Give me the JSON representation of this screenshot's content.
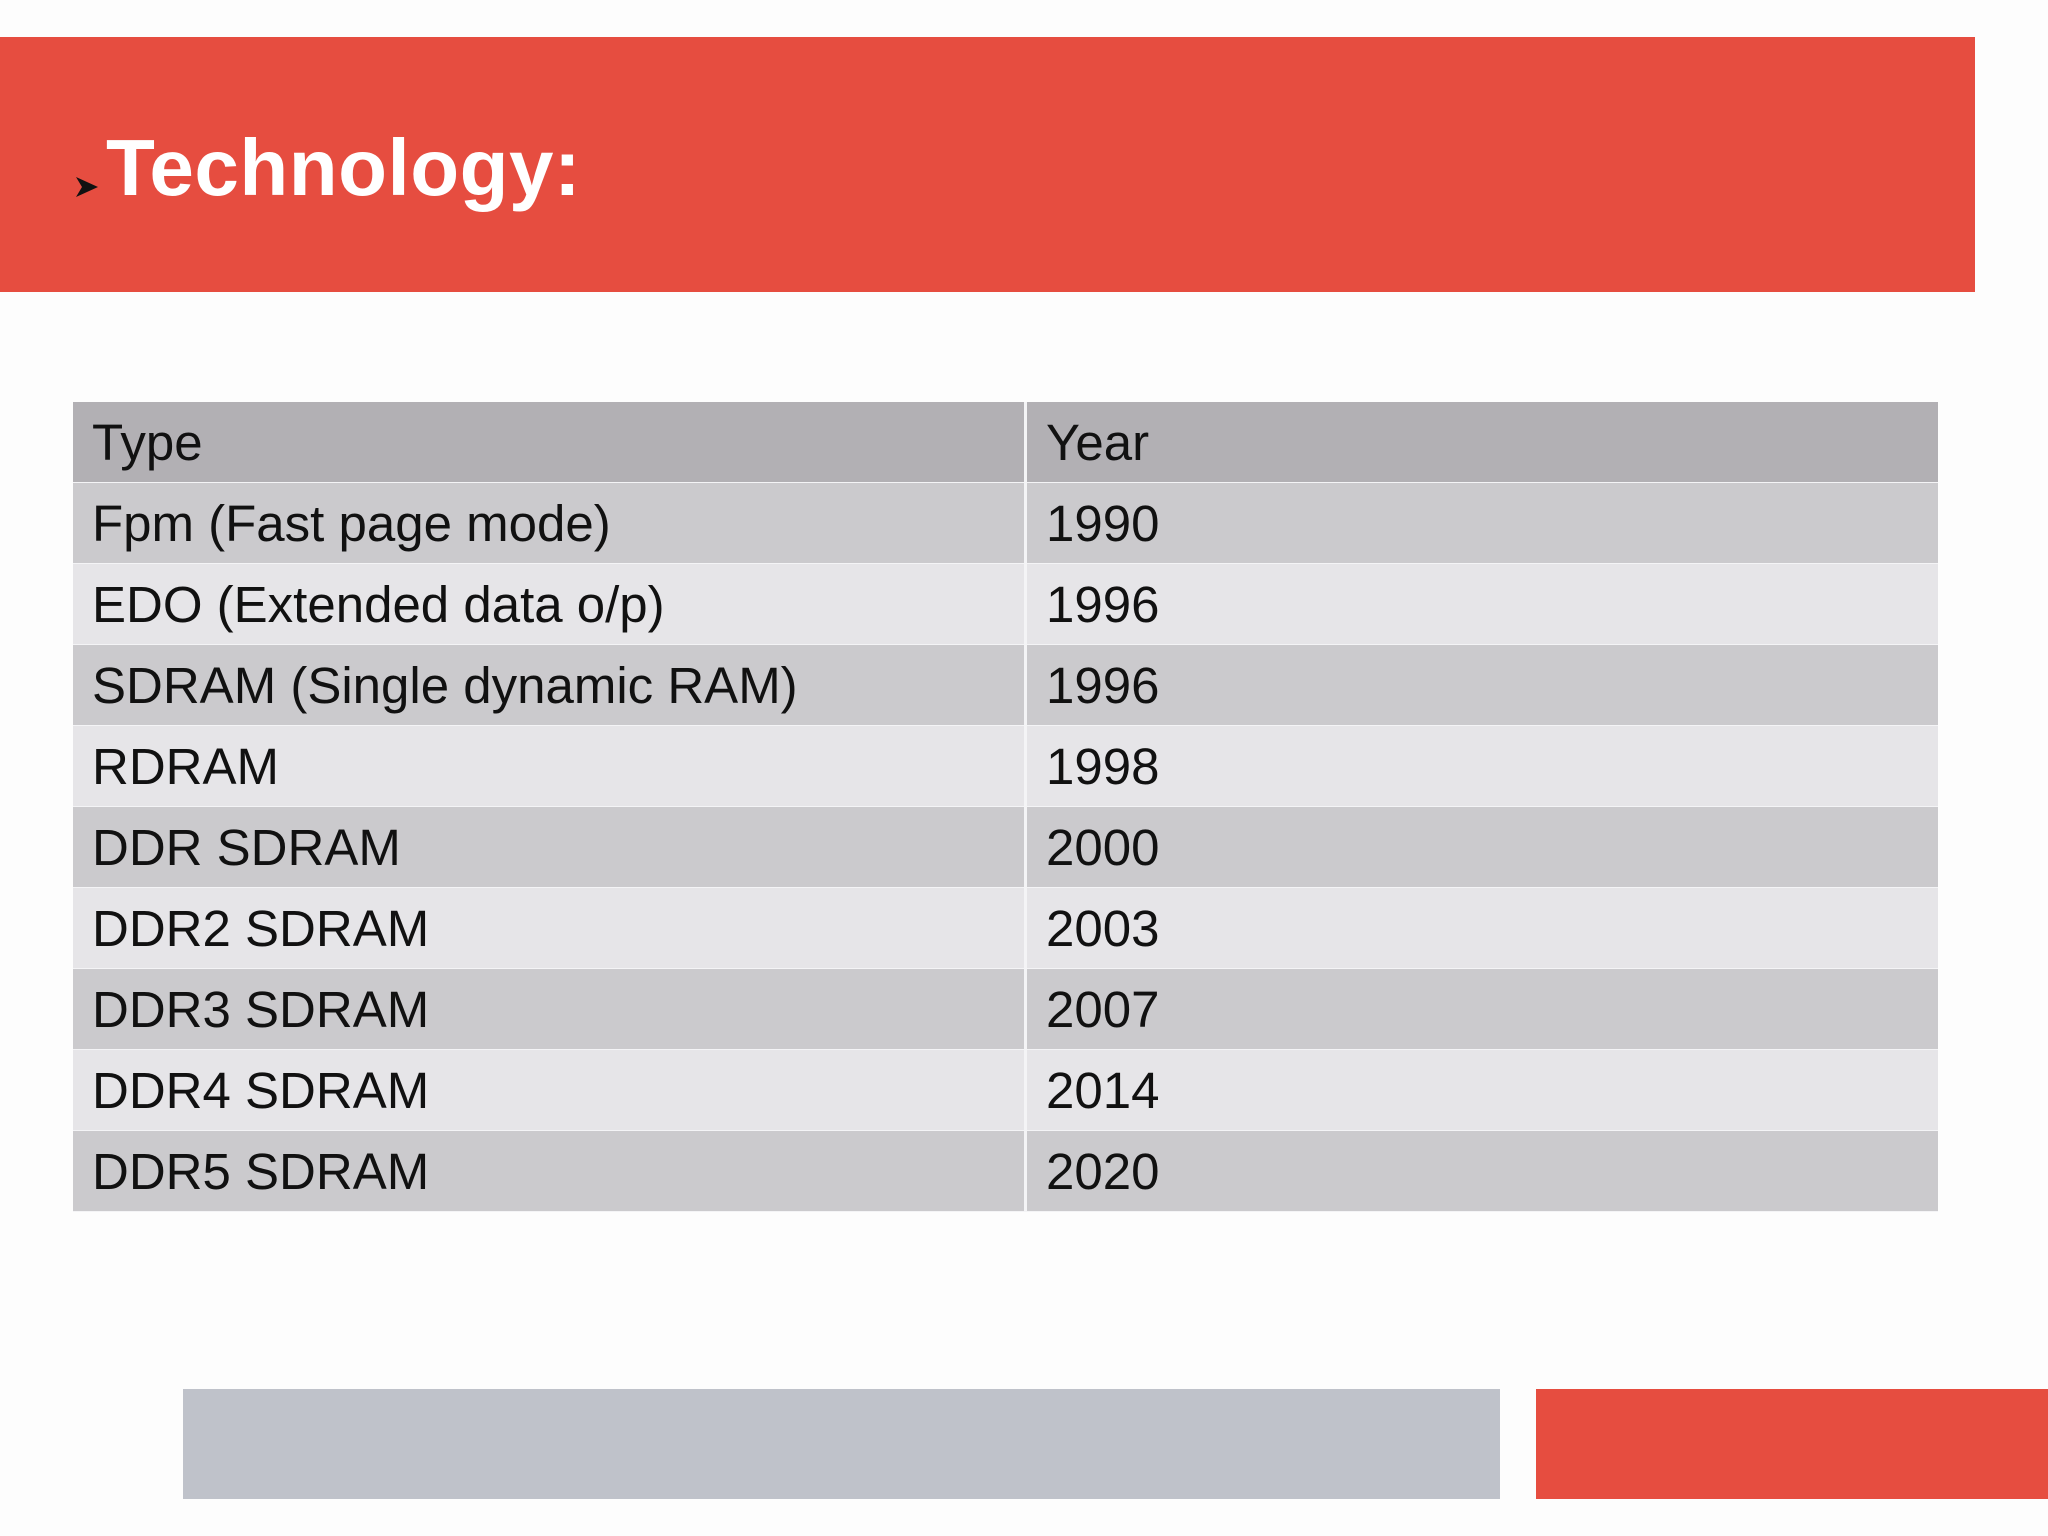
{
  "slide": {
    "title": "Technology:",
    "bullet_icon": "arrowhead-bullet-icon",
    "colors": {
      "accent_red": "#e64d40",
      "footer_gray": "#bfc2ca",
      "table_header": "#b2b0b4",
      "table_row_dark": "#cbcacd",
      "table_row_light": "#e6e5e8"
    }
  },
  "table": {
    "headers": [
      "Type",
      "Year"
    ],
    "rows": [
      [
        "Fpm (Fast page mode)",
        "1990"
      ],
      [
        "EDO (Extended data o/p)",
        "1996"
      ],
      [
        "SDRAM (Single dynamic RAM)",
        "1996"
      ],
      [
        "RDRAM",
        "1998"
      ],
      [
        "DDR SDRAM",
        "2000"
      ],
      [
        "DDR2 SDRAM",
        "2003"
      ],
      [
        "DDR3 SDRAM",
        "2007"
      ],
      [
        "DDR4 SDRAM",
        "2014"
      ],
      [
        "DDR5 SDRAM",
        "2020"
      ]
    ]
  }
}
